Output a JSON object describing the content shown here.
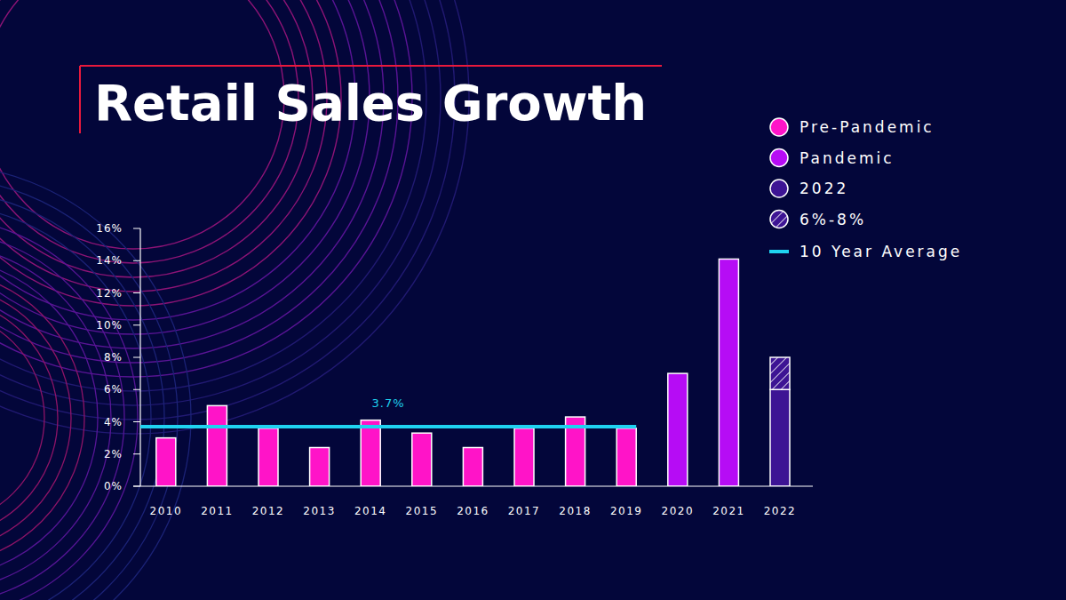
{
  "chart_data": {
    "type": "bar",
    "title": "Retail Sales Growth",
    "categories": [
      "2010",
      "2011",
      "2012",
      "2013",
      "2014",
      "2015",
      "2016",
      "2017",
      "2018",
      "2019",
      "2020",
      "2021",
      "2022"
    ],
    "series": [
      {
        "name": "Pre-Pandemic",
        "color": "#ff14c8",
        "values": [
          3.0,
          5.0,
          3.6,
          2.4,
          4.1,
          3.3,
          2.4,
          3.6,
          4.3,
          3.6,
          null,
          null,
          null
        ]
      },
      {
        "name": "Pandemic",
        "color": "#b60cf5",
        "values": [
          null,
          null,
          null,
          null,
          null,
          null,
          null,
          null,
          null,
          null,
          7.0,
          14.1,
          null
        ]
      },
      {
        "name": "2022",
        "color": "#3d1494",
        "values": [
          null,
          null,
          null,
          null,
          null,
          null,
          null,
          null,
          null,
          null,
          null,
          null,
          6.0
        ]
      },
      {
        "name": "6%-8%",
        "color": "#3d1494",
        "values": [
          null,
          null,
          null,
          null,
          null,
          null,
          null,
          null,
          null,
          null,
          null,
          null,
          2.0
        ]
      }
    ],
    "stacked": true,
    "ylim": [
      0,
      16
    ],
    "yticks": [
      {
        "value": 0,
        "label": "0%"
      },
      {
        "value": 2,
        "label": "2%"
      },
      {
        "value": 4,
        "label": "4%"
      },
      {
        "value": 6,
        "label": "6%"
      },
      {
        "value": 8,
        "label": "8%"
      },
      {
        "value": 10,
        "label": "10%"
      },
      {
        "value": 12,
        "label": "12%"
      },
      {
        "value": 14,
        "label": "14%"
      },
      {
        "value": 16,
        "label": "16%"
      }
    ],
    "grid": false,
    "legend": "upper right",
    "reference_lines": [
      {
        "name": "10 Year Average",
        "value": 3.7,
        "label": "3.7%",
        "color": "#1fd3f0"
      }
    ]
  }
}
